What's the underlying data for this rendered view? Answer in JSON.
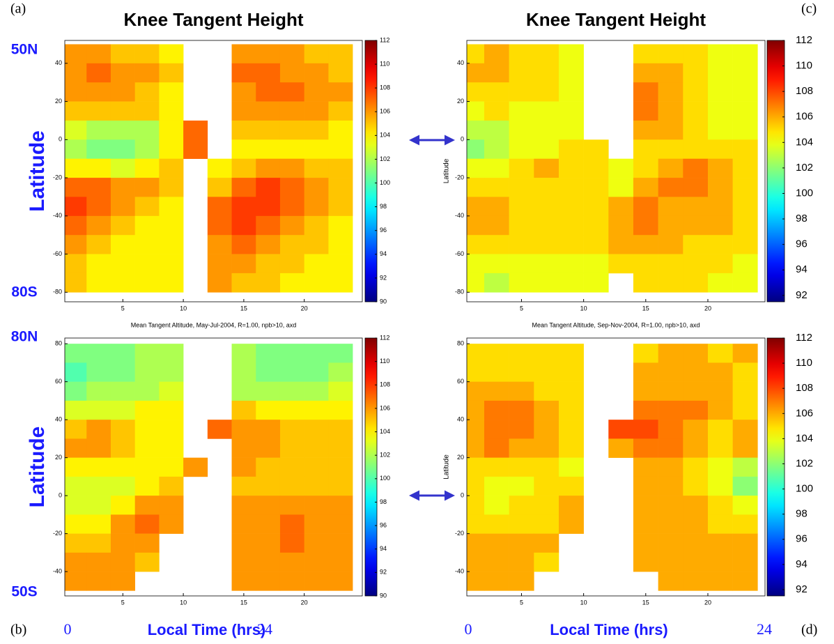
{
  "chart_data": [
    {
      "type": "heatmap",
      "panel_label": "(a)",
      "title": "Knee Tangent Height",
      "ylabel": "Latitude",
      "x": [
        1,
        3,
        5,
        7,
        9,
        11,
        13,
        15,
        17,
        19,
        21,
        23
      ],
      "y": [
        45,
        35,
        25,
        15,
        5,
        -5,
        -15,
        -25,
        -35,
        -45,
        -55,
        -65,
        -75
      ],
      "values": [
        [
          106,
          106,
          105,
          105,
          104,
          null,
          null,
          106,
          106,
          106,
          105,
          105
        ],
        [
          106,
          107,
          106,
          106,
          105,
          null,
          null,
          107,
          107,
          106,
          106,
          105
        ],
        [
          106,
          106,
          106,
          105,
          104,
          null,
          null,
          106,
          107,
          107,
          106,
          106
        ],
        [
          105,
          105,
          105,
          105,
          104,
          null,
          null,
          106,
          106,
          106,
          106,
          105
        ],
        [
          103,
          102,
          102,
          102,
          104,
          107,
          null,
          105,
          105,
          105,
          105,
          104
        ],
        [
          102,
          101,
          101,
          102,
          104,
          107,
          null,
          104,
          104,
          104,
          104,
          104
        ],
        [
          104,
          104,
          103,
          104,
          105,
          null,
          104,
          105,
          106,
          106,
          105,
          105
        ],
        [
          107,
          107,
          106,
          106,
          105,
          null,
          105,
          107,
          108,
          107,
          106,
          105
        ],
        [
          108,
          107,
          106,
          105,
          104,
          null,
          107,
          108,
          108,
          107,
          106,
          105
        ],
        [
          107,
          106,
          105,
          104,
          104,
          null,
          107,
          108,
          107,
          106,
          105,
          104
        ],
        [
          106,
          105,
          104,
          104,
          104,
          null,
          106,
          107,
          106,
          105,
          105,
          104
        ],
        [
          105,
          104,
          104,
          104,
          104,
          null,
          106,
          106,
          105,
          105,
          104,
          104
        ],
        [
          105,
          104,
          104,
          104,
          104,
          null,
          106,
          105,
          105,
          104,
          104,
          104
        ]
      ],
      "xlim": [
        0.2,
        24.8
      ],
      "ylim": [
        -85,
        52
      ],
      "xticks": [
        5,
        10,
        15,
        20
      ],
      "yticks": [
        40,
        20,
        0,
        -20,
        -40,
        -60,
        -80
      ],
      "clim": [
        90,
        112
      ],
      "cticks": [
        90,
        92,
        94,
        96,
        98,
        100,
        102,
        104,
        106,
        108,
        110,
        112
      ],
      "colormap": "jet"
    },
    {
      "type": "heatmap",
      "panel_label": "(b)",
      "title": "Mean Tangent Altitude, May-Jul-2004, R=1.00, npb>10, axd",
      "xlabel": "Local Time (hrs)",
      "ylabel": "Latitude",
      "x": [
        1,
        3,
        5,
        7,
        9,
        11,
        13,
        15,
        17,
        19,
        21,
        23
      ],
      "y": [
        75,
        65,
        55,
        45,
        35,
        25,
        15,
        5,
        -5,
        -15,
        -25,
        -35,
        -45
      ],
      "values": [
        [
          101,
          101,
          101,
          102,
          102,
          null,
          null,
          102,
          101,
          101,
          101,
          101
        ],
        [
          100,
          101,
          101,
          102,
          102,
          null,
          null,
          102,
          101,
          101,
          101,
          102
        ],
        [
          101,
          102,
          102,
          102,
          103,
          null,
          null,
          102,
          102,
          102,
          102,
          103
        ],
        [
          103,
          103,
          103,
          104,
          104,
          null,
          null,
          105,
          104,
          104,
          104,
          104
        ],
        [
          105,
          106,
          105,
          104,
          104,
          null,
          107,
          106,
          106,
          105,
          105,
          105
        ],
        [
          106,
          106,
          105,
          104,
          104,
          null,
          null,
          106,
          106,
          105,
          105,
          105
        ],
        [
          104,
          104,
          104,
          104,
          104,
          106,
          null,
          106,
          105,
          105,
          105,
          105
        ],
        [
          103,
          103,
          103,
          104,
          105,
          null,
          null,
          105,
          105,
          105,
          105,
          105
        ],
        [
          103,
          103,
          104,
          106,
          106,
          null,
          null,
          106,
          106,
          106,
          106,
          106
        ],
        [
          104,
          104,
          106,
          107,
          106,
          null,
          null,
          106,
          106,
          107,
          106,
          106
        ],
        [
          105,
          105,
          106,
          106,
          null,
          null,
          null,
          106,
          106,
          107,
          106,
          106
        ],
        [
          106,
          106,
          106,
          105,
          null,
          null,
          null,
          106,
          106,
          106,
          106,
          106
        ],
        [
          106,
          106,
          106,
          null,
          null,
          null,
          null,
          106,
          106,
          106,
          106,
          106
        ]
      ],
      "xlim": [
        0.2,
        24.8
      ],
      "ylim": [
        -52.8,
        83
      ],
      "xticks": [
        5,
        10,
        15,
        20
      ],
      "yticks": [
        80,
        60,
        40,
        20,
        0,
        -20,
        -40
      ],
      "clim": [
        90,
        112
      ],
      "cticks": [
        90,
        92,
        94,
        96,
        98,
        100,
        102,
        104,
        106,
        108,
        110,
        112
      ],
      "colormap": "jet"
    },
    {
      "type": "heatmap",
      "panel_label": "(c)",
      "title": "Knee Tangent Height",
      "ylabel": "Latitude",
      "x": [
        1,
        3,
        5,
        7,
        9,
        11,
        13,
        15,
        17,
        19,
        21,
        23
      ],
      "y": [
        45,
        35,
        25,
        15,
        5,
        -5,
        -15,
        -25,
        -35,
        -45,
        -55,
        -65,
        -75
      ],
      "values": [
        [
          105,
          106,
          105,
          105,
          104,
          null,
          null,
          105,
          105,
          105,
          104,
          104
        ],
        [
          106,
          106,
          105,
          105,
          104,
          null,
          null,
          106,
          106,
          105,
          104,
          104
        ],
        [
          105,
          105,
          105,
          105,
          104,
          null,
          null,
          107,
          106,
          105,
          104,
          104
        ],
        [
          104,
          105,
          104,
          104,
          104,
          null,
          null,
          107,
          106,
          105,
          104,
          104
        ],
        [
          103,
          103,
          104,
          104,
          104,
          null,
          null,
          106,
          106,
          105,
          104,
          104
        ],
        [
          102,
          103,
          104,
          104,
          105,
          105,
          null,
          105,
          105,
          105,
          105,
          105
        ],
        [
          104,
          104,
          105,
          106,
          105,
          105,
          104,
          105,
          106,
          107,
          106,
          105
        ],
        [
          105,
          105,
          105,
          105,
          105,
          105,
          104,
          106,
          107,
          107,
          106,
          105
        ],
        [
          106,
          106,
          105,
          105,
          105,
          105,
          106,
          107,
          106,
          106,
          106,
          105
        ],
        [
          106,
          106,
          105,
          105,
          105,
          105,
          106,
          107,
          106,
          106,
          106,
          105
        ],
        [
          105,
          105,
          105,
          105,
          105,
          105,
          106,
          106,
          106,
          105,
          105,
          105
        ],
        [
          104,
          104,
          104,
          104,
          104,
          104,
          105,
          105,
          105,
          105,
          105,
          104
        ],
        [
          104,
          103,
          104,
          104,
          104,
          104,
          null,
          105,
          105,
          105,
          104,
          104
        ]
      ],
      "xlim": [
        0.6,
        24.6
      ],
      "ylim": [
        -85,
        52
      ],
      "xticks": [
        5,
        10,
        15,
        20
      ],
      "yticks": [
        40,
        20,
        0,
        -20,
        -40,
        -60,
        -80
      ],
      "clim": [
        91.5,
        112
      ],
      "cticks": [
        92,
        94,
        96,
        98,
        100,
        102,
        104,
        106,
        108,
        110,
        112
      ],
      "colormap": "jet"
    },
    {
      "type": "heatmap",
      "panel_label": "(d)",
      "title": "Mean Tangent Altitude, Sep-Nov-2004, R=1.00, npb>10, axd",
      "xlabel": "Local Time (hrs)",
      "ylabel": "Latitude",
      "x": [
        1,
        3,
        5,
        7,
        9,
        11,
        13,
        15,
        17,
        19,
        21,
        23
      ],
      "y": [
        75,
        65,
        55,
        45,
        35,
        25,
        15,
        5,
        -5,
        -15,
        -25,
        -35,
        -45
      ],
      "values": [
        [
          105,
          105,
          105,
          105,
          105,
          null,
          null,
          105,
          106,
          106,
          105,
          106
        ],
        [
          105,
          105,
          105,
          105,
          105,
          null,
          null,
          106,
          106,
          106,
          106,
          105
        ],
        [
          106,
          106,
          106,
          105,
          105,
          null,
          null,
          106,
          106,
          106,
          106,
          105
        ],
        [
          106,
          107,
          107,
          106,
          105,
          null,
          null,
          107,
          107,
          107,
          106,
          105
        ],
        [
          106,
          107,
          107,
          106,
          105,
          null,
          108,
          108,
          107,
          106,
          105,
          106
        ],
        [
          106,
          107,
          106,
          106,
          105,
          null,
          106,
          107,
          107,
          106,
          105,
          106
        ],
        [
          105,
          105,
          105,
          105,
          104,
          null,
          null,
          106,
          106,
          105,
          104,
          103
        ],
        [
          105,
          104,
          104,
          105,
          105,
          null,
          null,
          106,
          106,
          105,
          104,
          102
        ],
        [
          105,
          104,
          105,
          105,
          106,
          null,
          null,
          106,
          106,
          106,
          105,
          104
        ],
        [
          105,
          105,
          105,
          105,
          106,
          null,
          null,
          106,
          106,
          106,
          105,
          105
        ],
        [
          106,
          106,
          106,
          106,
          null,
          null,
          null,
          106,
          106,
          106,
          106,
          106
        ],
        [
          106,
          106,
          106,
          105,
          null,
          null,
          null,
          106,
          106,
          106,
          106,
          106
        ],
        [
          106,
          106,
          106,
          null,
          null,
          null,
          null,
          null,
          106,
          106,
          106,
          106
        ]
      ],
      "xlim": [
        0.6,
        24.6
      ],
      "ylim": [
        -52.8,
        83
      ],
      "xticks": [
        5,
        10,
        15,
        20
      ],
      "yticks": [
        80,
        60,
        40,
        20,
        0,
        -20,
        -40
      ],
      "clim": [
        91.5,
        112
      ],
      "cticks": [
        92,
        94,
        96,
        98,
        100,
        102,
        104,
        106,
        108,
        110,
        112
      ],
      "colormap": "jet"
    }
  ],
  "annotations": [
    "50N",
    "80S",
    "80N",
    "50S",
    "0",
    "24",
    "0",
    "24"
  ]
}
